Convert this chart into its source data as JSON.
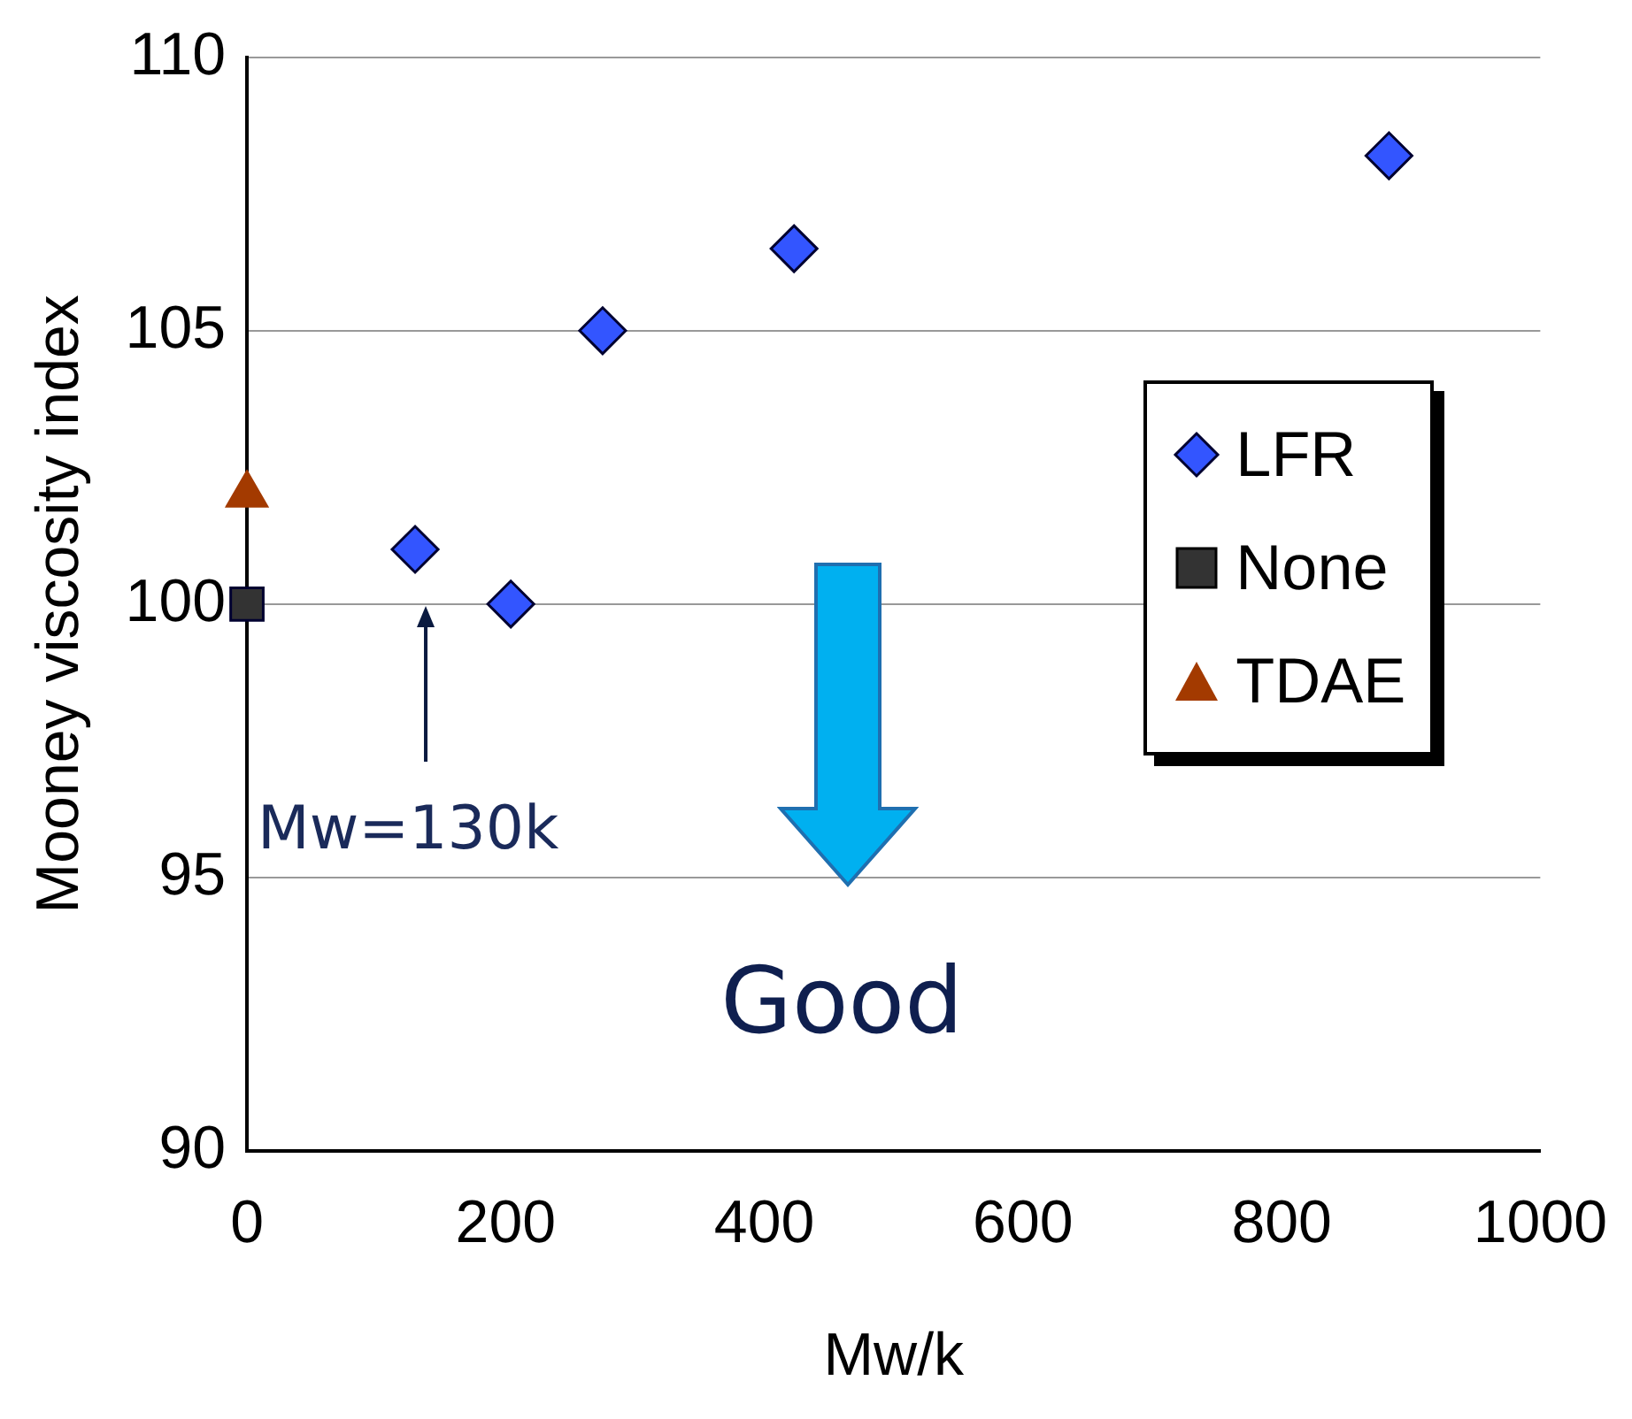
{
  "chart_data": {
    "type": "scatter",
    "xlabel": "Mw/k",
    "ylabel": "Mooney viscosity index",
    "xlim": [
      0,
      1000
    ],
    "xticks": [
      0,
      200,
      400,
      600,
      800,
      1000
    ],
    "ylim": [
      90,
      110
    ],
    "yticks": [
      90,
      95,
      100,
      105,
      110
    ],
    "grid": "y",
    "legend": "right",
    "series": [
      {
        "name": "LFR",
        "color": "#3355ff",
        "marker": "diamond",
        "x": [
          130,
          204,
          275,
          423,
          883
        ],
        "values": [
          101,
          100,
          105,
          106.5,
          108.2
        ]
      },
      {
        "name": "None",
        "color": "#333333",
        "marker": "square",
        "x": [
          0
        ],
        "values": [
          100
        ]
      },
      {
        "name": "TDAE",
        "color": "#a33a00",
        "marker": "triangle",
        "x": [
          0
        ],
        "values": [
          102
        ]
      }
    ],
    "annotations": [
      "Mw=130k",
      "Good"
    ]
  }
}
